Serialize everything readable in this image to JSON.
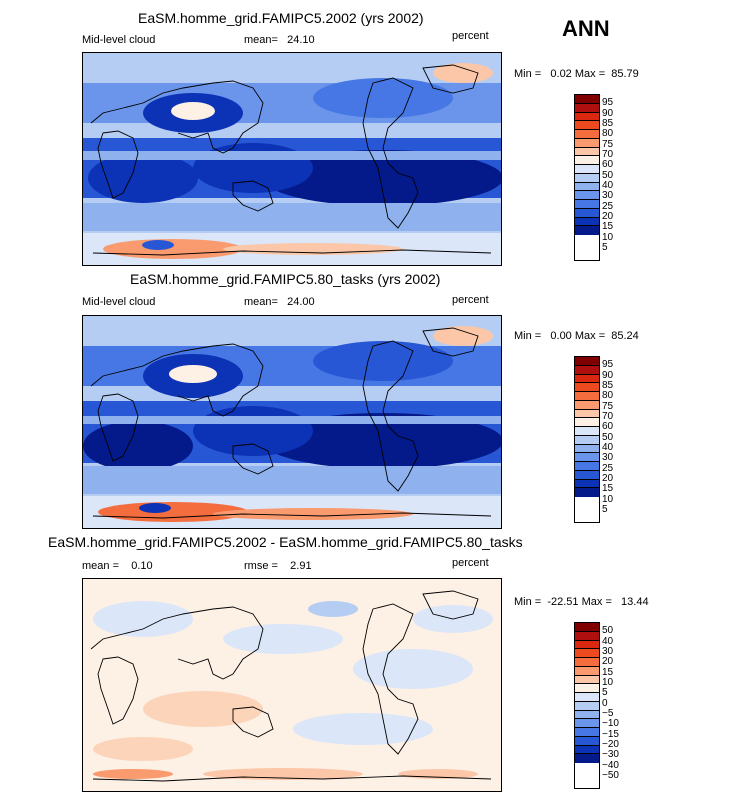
{
  "season": "ANN",
  "panels": [
    {
      "title": "EaSM.homme_grid.FAMIPC5.2002 (yrs 2002)",
      "left_label": "Mid-level cloud",
      "mid_label": "mean=",
      "mid_value": "24.10",
      "right_label": "percent",
      "min_label": "Min =",
      "min_value": "0.02",
      "max_label": "Max =",
      "max_value": "85.79",
      "colorbar": {
        "levels": [
          "95",
          "90",
          "85",
          "80",
          "75",
          "70",
          "60",
          "50",
          "40",
          "30",
          "25",
          "20",
          "15",
          "10",
          "5"
        ],
        "colors": [
          "#800000",
          "#b00f0f",
          "#d9280f",
          "#ee4a20",
          "#f46d3e",
          "#f99a6f",
          "#fbc7a8",
          "#fdf0e5",
          "#dbe6f8",
          "#b5cdf3",
          "#8fb2ee",
          "#6b95ea",
          "#4677e4",
          "#2857d6",
          "#0c32b6",
          "#041a8a"
        ]
      }
    },
    {
      "title": "EaSM.homme_grid.FAMIPC5.80_tasks (yrs 2002)",
      "left_label": "Mid-level cloud",
      "mid_label": "mean=",
      "mid_value": "24.00",
      "right_label": "percent",
      "min_label": "Min =",
      "min_value": "0.00",
      "max_label": "Max =",
      "max_value": "85.24",
      "colorbar": {
        "levels": [
          "95",
          "90",
          "85",
          "80",
          "75",
          "70",
          "60",
          "50",
          "40",
          "30",
          "25",
          "20",
          "15",
          "10",
          "5"
        ],
        "colors": [
          "#800000",
          "#b00f0f",
          "#d9280f",
          "#ee4a20",
          "#f46d3e",
          "#f99a6f",
          "#fbc7a8",
          "#fdf0e5",
          "#dbe6f8",
          "#b5cdf3",
          "#8fb2ee",
          "#6b95ea",
          "#4677e4",
          "#2857d6",
          "#0c32b6",
          "#041a8a"
        ]
      }
    },
    {
      "title": "EaSM.homme_grid.FAMIPC5.2002 - EaSM.homme_grid.FAMIPC5.80_tasks",
      "left_label": "mean =",
      "left_value": "0.10",
      "mid_label": "rmse =",
      "mid_value": "2.91",
      "right_label": "percent",
      "min_label": "Min =",
      "min_value": "-22.51",
      "max_label": "Max =",
      "max_value": "13.44",
      "colorbar": {
        "levels": [
          "50",
          "40",
          "30",
          "20",
          "15",
          "10",
          "5",
          "0",
          "−5",
          "−10",
          "−15",
          "−20",
          "−30",
          "−40",
          "−50"
        ],
        "colors": [
          "#800000",
          "#b00f0f",
          "#d9280f",
          "#ee4a20",
          "#f46d3e",
          "#f99a6f",
          "#fbc7a8",
          "#fdf0e5",
          "#dbe6f8",
          "#b5cdf3",
          "#8fb2ee",
          "#6b95ea",
          "#4677e4",
          "#2857d6",
          "#0c32b6",
          "#041a8a"
        ]
      }
    }
  ],
  "chart_data": [
    {
      "type": "heatmap",
      "title": "EaSM.homme_grid.FAMIPC5.2002 (yrs 2002)",
      "variable": "Mid-level cloud",
      "units": "percent",
      "mean": 24.1,
      "min": 0.02,
      "max": 85.79,
      "contour_levels": [
        5,
        10,
        15,
        20,
        25,
        30,
        40,
        50,
        60,
        70,
        75,
        80,
        85,
        90,
        95
      ]
    },
    {
      "type": "heatmap",
      "title": "EaSM.homme_grid.FAMIPC5.80_tasks (yrs 2002)",
      "variable": "Mid-level cloud",
      "units": "percent",
      "mean": 24.0,
      "min": 0.0,
      "max": 85.24,
      "contour_levels": [
        5,
        10,
        15,
        20,
        25,
        30,
        40,
        50,
        60,
        70,
        75,
        80,
        85,
        90,
        95
      ]
    },
    {
      "type": "heatmap",
      "title": "EaSM.homme_grid.FAMIPC5.2002 - EaSM.homme_grid.FAMIPC5.80_tasks",
      "units": "percent",
      "mean": 0.1,
      "rmse": 2.91,
      "min": -22.51,
      "max": 13.44,
      "contour_levels": [
        -50,
        -40,
        -30,
        -20,
        -15,
        -10,
        -5,
        0,
        5,
        10,
        15,
        20,
        30,
        40,
        50
      ]
    }
  ]
}
